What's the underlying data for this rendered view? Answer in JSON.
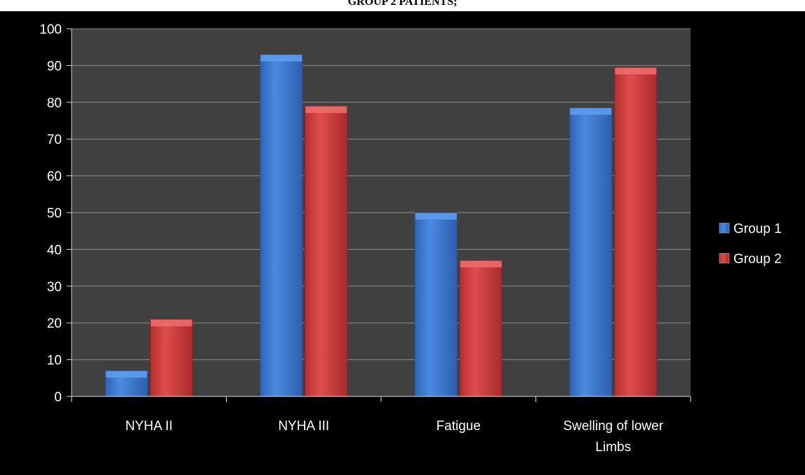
{
  "page_title": "GROUP 2 PATIENTS;",
  "chart_data": {
    "type": "bar",
    "title": "GROUP 2 PATIENTS;",
    "xlabel": "",
    "ylabel": "",
    "categories": [
      "NYHA II",
      "NYHA III",
      "Fatigue",
      "Swelling of lower Limbs"
    ],
    "series": [
      {
        "name": "Group 1",
        "values": [
          7,
          93,
          50,
          78.5
        ],
        "color": "#3f7fd6"
      },
      {
        "name": "Group 2",
        "values": [
          21,
          79,
          37,
          89.5
        ],
        "color": "#d94141"
      }
    ],
    "ylim": [
      0,
      100
    ],
    "yticks": [
      0,
      10,
      20,
      30,
      40,
      50,
      60,
      70,
      80,
      90,
      100
    ],
    "grid": true,
    "legend_position": "right",
    "plot_background": "#404040",
    "frame_background": "#000000"
  }
}
